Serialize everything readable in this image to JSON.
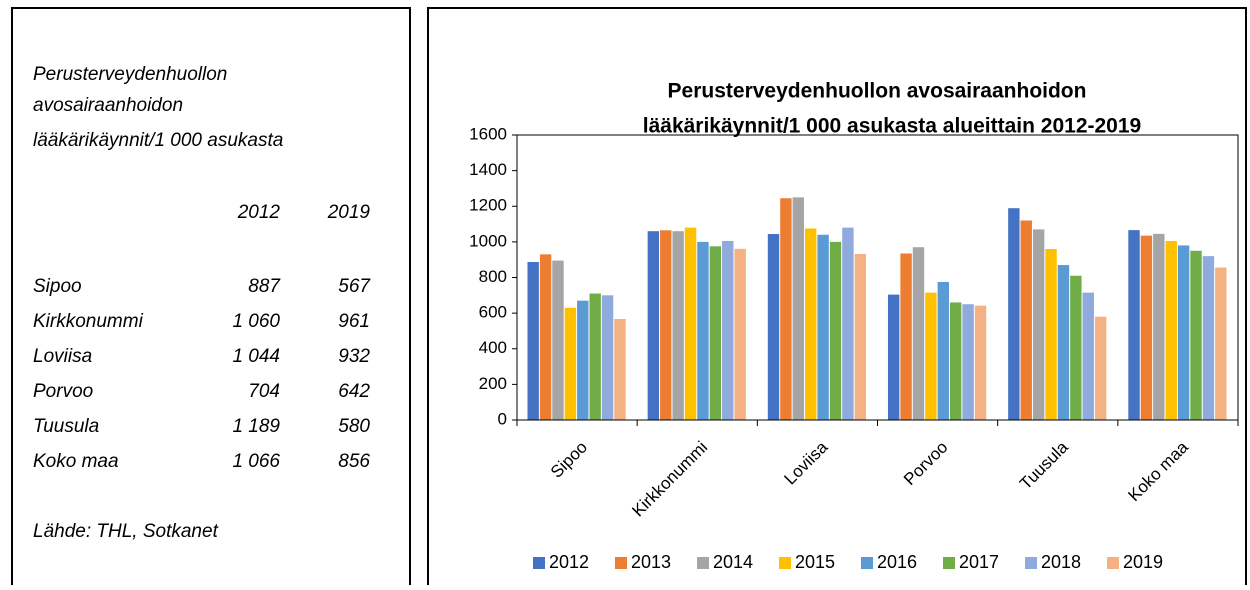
{
  "panel": {
    "title": [
      "Perusterveydenhuollon",
      "avosairaanhoidon",
      "lääkärikäynnit/1 000 asukasta"
    ],
    "columns": [
      "2012",
      "2019"
    ],
    "rows": [
      [
        "Sipoo",
        "887",
        "567"
      ],
      [
        "Kirkkonummi",
        "1 060",
        "961"
      ],
      [
        "Loviisa",
        "1 044",
        "932"
      ],
      [
        "Porvoo",
        "704",
        "642"
      ],
      [
        "Tuusula",
        "1 189",
        "580"
      ],
      [
        "Koko maa",
        "1 066",
        "856"
      ]
    ],
    "source": "Lähde: THL, Sotkanet"
  },
  "chart_data": {
    "type": "bar",
    "title": [
      "Perusterveydenhuollon avosairaanhoidon",
      "lääkärikäynnit/1 000 asukasta alueittain 2012-2019"
    ],
    "categories": [
      "Sipoo",
      "Kirkkonummi",
      "Loviisa",
      "Porvoo",
      "Tuusula",
      "Koko maa"
    ],
    "series": [
      {
        "name": "2012",
        "color": "#4472c4",
        "values": [
          887,
          1060,
          1044,
          704,
          1189,
          1066
        ]
      },
      {
        "name": "2013",
        "color": "#ed7d31",
        "values": [
          930,
          1065,
          1245,
          935,
          1120,
          1035
        ]
      },
      {
        "name": "2014",
        "color": "#a5a5a5",
        "values": [
          895,
          1060,
          1250,
          970,
          1070,
          1045
        ]
      },
      {
        "name": "2015",
        "color": "#ffc000",
        "values": [
          630,
          1080,
          1075,
          715,
          960,
          1005
        ]
      },
      {
        "name": "2016",
        "color": "#5b9bd5",
        "values": [
          670,
          1000,
          1040,
          775,
          870,
          980
        ]
      },
      {
        "name": "2017",
        "color": "#70ad47",
        "values": [
          710,
          975,
          1000,
          660,
          810,
          950
        ]
      },
      {
        "name": "2018",
        "color": "#8faadc",
        "values": [
          700,
          1005,
          1080,
          650,
          715,
          920
        ]
      },
      {
        "name": "2019",
        "color": "#f4b183",
        "values": [
          567,
          961,
          932,
          642,
          580,
          856
        ]
      }
    ],
    "ylim": [
      0,
      1600
    ],
    "yticks": [
      0,
      200,
      400,
      600,
      800,
      1000,
      1200,
      1400,
      1600
    ],
    "legend": "bottom"
  }
}
